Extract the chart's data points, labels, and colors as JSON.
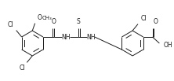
{
  "bg_color": "#ffffff",
  "line_color": "#1a1a1a",
  "line_width": 0.7,
  "font_size": 5.0,
  "fig_width": 2.22,
  "fig_height": 1.03,
  "dpi": 100,
  "xlim": [
    0,
    222
  ],
  "ylim": [
    0,
    103
  ]
}
